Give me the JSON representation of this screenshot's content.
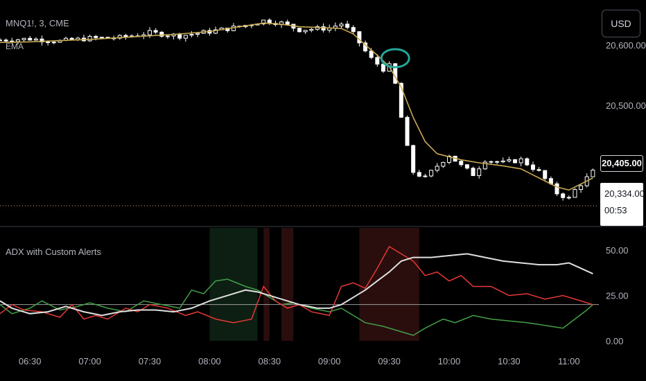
{
  "symbol": "MNQ1!, 3, CME",
  "ema_label": "EMA",
  "currency": "USD",
  "indicator_title": "ADX with Custom Alerts",
  "price_axis_labels": [
    "20,600.00",
    "20,500.00"
  ],
  "current_price": "20,405.00",
  "stop_price": "20,334.00",
  "countdown": "00:53",
  "adx_axis_labels": [
    "50.00",
    "25.00",
    "0.00"
  ],
  "time_labels": [
    "06:30",
    "07:00",
    "07:30",
    "08:00",
    "08:30",
    "09:00",
    "09:30",
    "10:00",
    "10:30",
    "11:00"
  ],
  "colors": {
    "background": "#000000",
    "candle": "#ffffff",
    "ema": "#c8a951",
    "annotation_circle": "#26a69a",
    "dotted_level": "#f0a070",
    "di_plus": "#43a047",
    "di_minus": "#e53935",
    "adx": "#e0e0e0",
    "threshold": "#9e9e9e",
    "bg_green": "#0d1f12",
    "bg_red": "#2a0d0d"
  },
  "chart_data": [
    {
      "type": "candlestick",
      "title": "MNQ1!, 3, CME",
      "x_unit": "time",
      "ylim": [
        20310,
        20665
      ],
      "y_ticks": [
        20600,
        20500
      ],
      "x_ticks": [
        "06:30",
        "07:00",
        "07:30",
        "08:00",
        "08:30",
        "09:00",
        "09:30",
        "10:00",
        "10:30",
        "11:00"
      ],
      "x_range": [
        "06:15",
        "11:15"
      ],
      "close_series": [
        [
          "06:15",
          20608
        ],
        [
          "06:30",
          20610
        ],
        [
          "06:45",
          20606
        ],
        [
          "07:00",
          20611
        ],
        [
          "07:15",
          20612
        ],
        [
          "07:30",
          20620
        ],
        [
          "07:45",
          20615
        ],
        [
          "08:00",
          20622
        ],
        [
          "08:15",
          20630
        ],
        [
          "08:27",
          20640
        ],
        [
          "08:36",
          20636
        ],
        [
          "08:45",
          20625
        ],
        [
          "09:00",
          20628
        ],
        [
          "09:06",
          20635
        ],
        [
          "09:12",
          20618
        ],
        [
          "09:20",
          20580
        ],
        [
          "09:27",
          20560
        ],
        [
          "09:30",
          20565
        ],
        [
          "09:33",
          20535
        ],
        [
          "09:36",
          20480
        ],
        [
          "09:39",
          20430
        ],
        [
          "09:42",
          20390
        ],
        [
          "09:48",
          20380
        ],
        [
          "09:54",
          20400
        ],
        [
          "10:00",
          20418
        ],
        [
          "10:06",
          20400
        ],
        [
          "10:12",
          20386
        ],
        [
          "10:18",
          20410
        ],
        [
          "10:27",
          20405
        ],
        [
          "10:36",
          20410
        ],
        [
          "10:45",
          20390
        ],
        [
          "10:54",
          20355
        ],
        [
          "11:00",
          20346
        ],
        [
          "11:03",
          20360
        ],
        [
          "11:09",
          20380
        ],
        [
          "11:12",
          20390
        ]
      ],
      "ema": [
        [
          "06:15",
          20604
        ],
        [
          "06:30",
          20605
        ],
        [
          "06:45",
          20607
        ],
        [
          "07:00",
          20609
        ],
        [
          "07:15",
          20612
        ],
        [
          "07:30",
          20615
        ],
        [
          "07:45",
          20618
        ],
        [
          "08:00",
          20622
        ],
        [
          "08:15",
          20630
        ],
        [
          "08:27",
          20636
        ],
        [
          "08:36",
          20634
        ],
        [
          "08:45",
          20630
        ],
        [
          "09:00",
          20628
        ],
        [
          "09:06",
          20627
        ],
        [
          "09:12",
          20618
        ],
        [
          "09:18",
          20600
        ],
        [
          "09:24",
          20583
        ],
        [
          "09:30",
          20564
        ],
        [
          "09:36",
          20530
        ],
        [
          "09:42",
          20480
        ],
        [
          "09:48",
          20440
        ],
        [
          "09:54",
          20420
        ],
        [
          "10:00",
          20415
        ],
        [
          "10:06",
          20410
        ],
        [
          "10:15",
          20405
        ],
        [
          "10:27",
          20400
        ],
        [
          "10:36",
          20395
        ],
        [
          "10:45",
          20380
        ],
        [
          "10:54",
          20365
        ],
        [
          "11:00",
          20360
        ],
        [
          "11:06",
          20370
        ],
        [
          "11:12",
          20380
        ]
      ],
      "current_price": 20405,
      "stop_level": 20334,
      "annotation": "circle"
    },
    {
      "type": "line",
      "title": "ADX with Custom Alerts",
      "x_unit": "time",
      "ylim": [
        0,
        60
      ],
      "y_ticks": [
        50,
        25,
        0
      ],
      "threshold": 20,
      "x_range": [
        "06:15",
        "11:15"
      ],
      "series": [
        {
          "color": "#43a047",
          "points": [
            [
              "06:15",
              20
            ],
            [
              "06:21",
              15
            ],
            [
              "06:30",
              18
            ],
            [
              "06:36",
              22
            ],
            [
              "06:45",
              17
            ],
            [
              "06:54",
              19
            ],
            [
              "07:00",
              21
            ],
            [
              "07:09",
              18
            ],
            [
              "07:18",
              16
            ],
            [
              "07:27",
              22
            ],
            [
              "07:36",
              20
            ],
            [
              "07:45",
              18
            ],
            [
              "07:51",
              28
            ],
            [
              "07:57",
              26
            ],
            [
              "08:03",
              33
            ],
            [
              "08:09",
              34
            ],
            [
              "08:18",
              30
            ],
            [
              "08:24",
              28
            ],
            [
              "08:30",
              24
            ],
            [
              "08:36",
              20
            ],
            [
              "08:42",
              21
            ],
            [
              "08:51",
              18
            ],
            [
              "09:00",
              16
            ],
            [
              "09:06",
              18
            ],
            [
              "09:12",
              14
            ],
            [
              "09:18",
              10
            ],
            [
              "09:27",
              8
            ],
            [
              "09:36",
              5
            ],
            [
              "09:42",
              3
            ],
            [
              "09:48",
              7
            ],
            [
              "09:57",
              12
            ],
            [
              "10:03",
              10
            ],
            [
              "10:12",
              14
            ],
            [
              "10:21",
              12
            ],
            [
              "10:30",
              11
            ],
            [
              "10:39",
              10
            ],
            [
              "10:45",
              9
            ],
            [
              "10:51",
              8
            ],
            [
              "10:57",
              7
            ],
            [
              "11:03",
              12
            ],
            [
              "11:09",
              17
            ],
            [
              "11:12",
              20
            ]
          ]
        },
        {
          "color": "#e53935",
          "points": [
            [
              "06:15",
              15
            ],
            [
              "06:21",
              20
            ],
            [
              "06:27",
              17
            ],
            [
              "06:36",
              16
            ],
            [
              "06:45",
              13
            ],
            [
              "06:51",
              20
            ],
            [
              "06:57",
              12
            ],
            [
              "07:03",
              14
            ],
            [
              "07:09",
              12
            ],
            [
              "07:18",
              18
            ],
            [
              "07:24",
              16
            ],
            [
              "07:30",
              20
            ],
            [
              "07:39",
              18
            ],
            [
              "07:48",
              14
            ],
            [
              "07:54",
              16
            ],
            [
              "08:03",
              12
            ],
            [
              "08:12",
              10
            ],
            [
              "08:21",
              12
            ],
            [
              "08:27",
              30
            ],
            [
              "08:33",
              22
            ],
            [
              "08:39",
              18
            ],
            [
              "08:45",
              20
            ],
            [
              "08:51",
              16
            ],
            [
              "09:00",
              14
            ],
            [
              "09:06",
              30
            ],
            [
              "09:12",
              32
            ],
            [
              "09:18",
              29
            ],
            [
              "09:24",
              40
            ],
            [
              "09:30",
              52
            ],
            [
              "09:36",
              48
            ],
            [
              "09:42",
              44
            ],
            [
              "09:48",
              36
            ],
            [
              "09:54",
              38
            ],
            [
              "10:00",
              33
            ],
            [
              "10:06",
              36
            ],
            [
              "10:12",
              30
            ],
            [
              "10:21",
              30
            ],
            [
              "10:30",
              25
            ],
            [
              "10:39",
              26
            ],
            [
              "10:48",
              23
            ],
            [
              "10:57",
              25
            ],
            [
              "11:06",
              22
            ],
            [
              "11:12",
              20
            ]
          ]
        },
        {
          "color": "#e0e0e0",
          "points": [
            [
              "06:15",
              22
            ],
            [
              "06:21",
              18
            ],
            [
              "06:30",
              15
            ],
            [
              "06:39",
              16
            ],
            [
              "06:48",
              19
            ],
            [
              "06:57",
              16
            ],
            [
              "07:06",
              14
            ],
            [
              "07:15",
              16
            ],
            [
              "07:24",
              17
            ],
            [
              "07:33",
              17
            ],
            [
              "07:42",
              16
            ],
            [
              "07:51",
              18
            ],
            [
              "08:00",
              22
            ],
            [
              "08:09",
              25
            ],
            [
              "08:18",
              28
            ],
            [
              "08:24",
              27
            ],
            [
              "08:30",
              25
            ],
            [
              "08:36",
              23
            ],
            [
              "08:45",
              20
            ],
            [
              "08:54",
              18
            ],
            [
              "09:00",
              18
            ],
            [
              "09:06",
              20
            ],
            [
              "09:12",
              24
            ],
            [
              "09:18",
              28
            ],
            [
              "09:24",
              33
            ],
            [
              "09:30",
              38
            ],
            [
              "09:36",
              44
            ],
            [
              "09:42",
              46
            ],
            [
              "09:51",
              46
            ],
            [
              "10:00",
              47
            ],
            [
              "10:09",
              48
            ],
            [
              "10:18",
              46
            ],
            [
              "10:27",
              44
            ],
            [
              "10:36",
              43
            ],
            [
              "10:45",
              42
            ],
            [
              "10:54",
              42
            ],
            [
              "11:00",
              43
            ],
            [
              "11:06",
              40
            ],
            [
              "11:12",
              37
            ]
          ]
        }
      ],
      "background_bands": [
        {
          "color": "green",
          "from": "08:00",
          "to": "08:24"
        },
        {
          "color": "red",
          "from": "08:27",
          "to": "08:30"
        },
        {
          "color": "red",
          "from": "08:36",
          "to": "08:42"
        },
        {
          "color": "red",
          "from": "09:15",
          "to": "09:45"
        }
      ]
    }
  ]
}
